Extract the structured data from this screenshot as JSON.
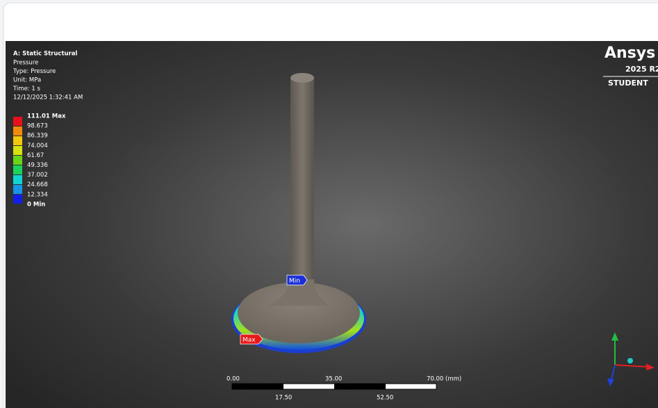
{
  "header": {
    "title": "A: Static Structural",
    "lines": [
      "Pressure",
      "Type: Pressure",
      "Unit: MPa",
      "Time: 1 s",
      "12/12/2025 1:32:41 AM"
    ]
  },
  "legend": {
    "labels": [
      "111.01 Max",
      "98.673",
      "86.339",
      "74.004",
      "61.67",
      "49.336",
      "37.002",
      "24.668",
      "12.334",
      "0 Min"
    ]
  },
  "logo": {
    "brand": "Ansys",
    "version": "2025 R2",
    "edition": "STUDENT"
  },
  "probes": {
    "min": "Min",
    "max": "Max"
  },
  "scale_bar": {
    "top": [
      "0.00",
      "35.00",
      "70.00 (mm)"
    ],
    "bottom": [
      "17.50",
      "52.50"
    ]
  }
}
